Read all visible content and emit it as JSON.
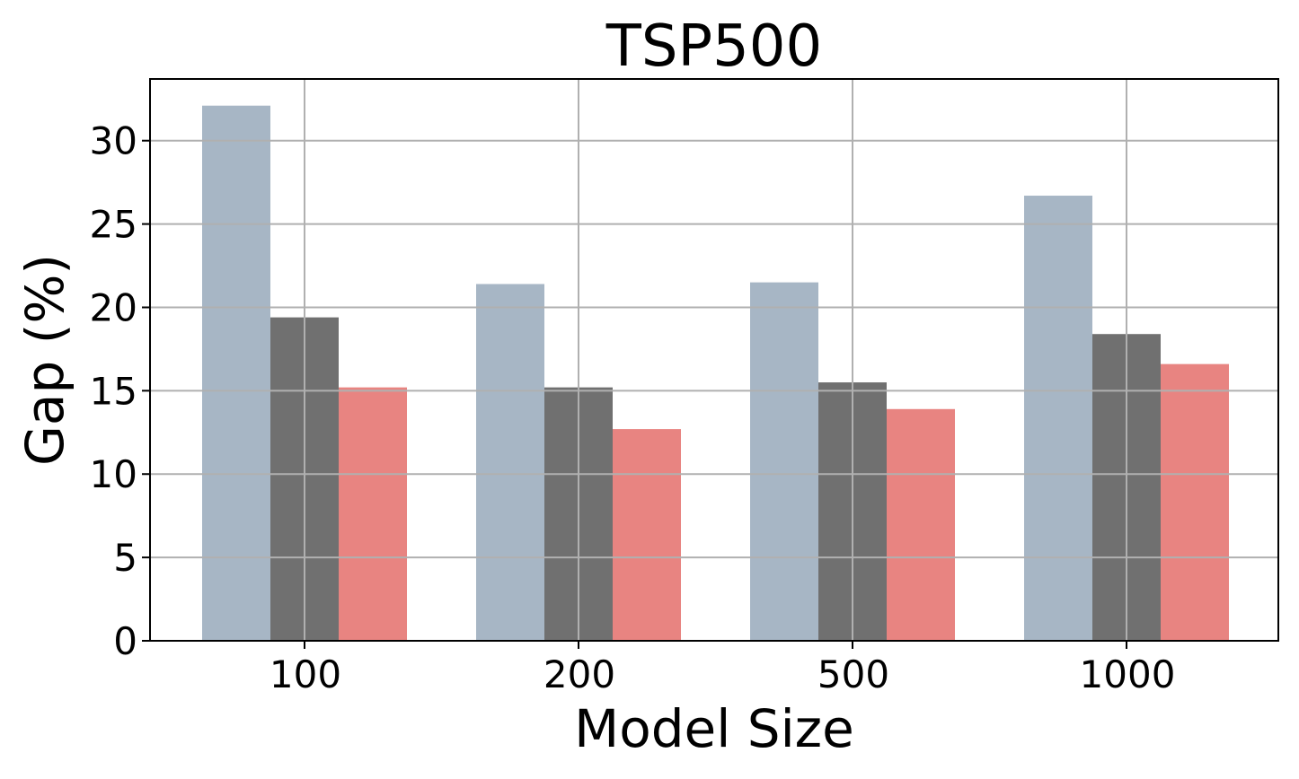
{
  "chart_data": {
    "type": "bar",
    "title": "TSP500",
    "xlabel": "Model Size",
    "ylabel": "Gap (%)",
    "categories": [
      "100",
      "200",
      "500",
      "1000"
    ],
    "series": [
      {
        "values": [
          32.1,
          21.4,
          21.5,
          26.7
        ],
        "color": "#a7b6c5"
      },
      {
        "values": [
          19.4,
          15.2,
          15.5,
          18.4
        ],
        "color": "#707070"
      },
      {
        "values": [
          15.2,
          12.7,
          13.9,
          16.6
        ],
        "color": "#e88481"
      }
    ],
    "ylim": [
      0,
      33.7
    ],
    "yticks": [
      0,
      5,
      10,
      15,
      20,
      25,
      30
    ],
    "grid": true,
    "legend": "none"
  }
}
